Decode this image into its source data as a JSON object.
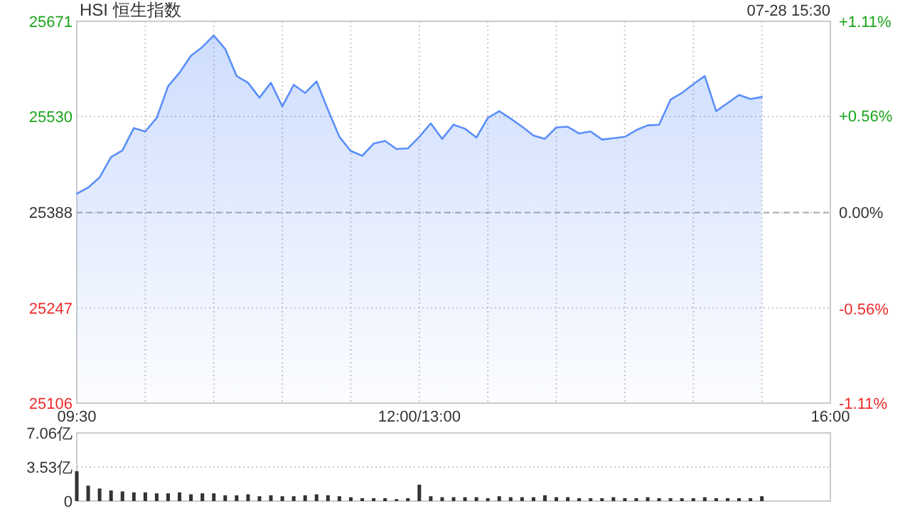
{
  "chart_data": [
    {
      "type": "area",
      "title": "HSI 恒生指数",
      "annotations": [
        "07-28 15:30"
      ],
      "categories": [
        "09:30",
        null,
        null,
        null,
        null,
        null,
        null,
        null,
        null,
        null,
        null,
        null,
        null,
        null,
        null,
        null,
        null,
        null,
        null,
        null,
        null,
        null,
        null,
        null,
        null,
        null,
        null,
        null,
        null,
        null,
        "12:00/13:00",
        null,
        null,
        null,
        null,
        null,
        null,
        null,
        null,
        null,
        null,
        null,
        null,
        null,
        null,
        null,
        null,
        null,
        null,
        null,
        null,
        null,
        null,
        null,
        null,
        null,
        null,
        null,
        null,
        null,
        null,
        null,
        null,
        null,
        null,
        null,
        "16:00"
      ],
      "series": [
        {
          "color": "#5b8ff9",
          "values": [
            25416,
            25425,
            25440,
            25470,
            25480,
            25513,
            25508,
            25528,
            25575,
            25595,
            25620,
            25633,
            25650,
            25630,
            25590,
            25580,
            25558,
            25580,
            25545,
            25577,
            25565,
            25582,
            25540,
            25500,
            25479,
            25472,
            25490,
            25494,
            25482,
            25483,
            25500,
            25520,
            25497,
            25518,
            25512,
            25499,
            25528,
            25538,
            25527,
            25515,
            25502,
            25497,
            25514,
            25515,
            25505,
            25508,
            25496,
            25498,
            25500,
            25510,
            25517,
            25518,
            25555,
            25565,
            25578,
            25590,
            25538,
            25550,
            25562,
            25556,
            25559,
            null,
            null,
            null,
            null,
            null,
            null
          ]
        }
      ],
      "ylim": [
        25106,
        25671
      ],
      "yticks": [
        25106,
        25247,
        25388,
        25530,
        25671
      ],
      "y2lim": [
        -1.11,
        1.11
      ],
      "y2ticks": [
        {
          "value": -1.11,
          "label": "-1.11%"
        },
        {
          "value": -0.56,
          "label": "-0.56%"
        },
        {
          "value": 0,
          "label": "0.00%"
        },
        {
          "value": 0.56,
          "label": "+0.56%"
        },
        {
          "value": 1.11,
          "label": "+1.11%"
        }
      ],
      "ref_lines": [
        {
          "axis": "y",
          "value": 25388,
          "line_style": "dashed",
          "color": "#aaaaaa"
        }
      ],
      "grid": true
    },
    {
      "type": "bar",
      "categories": [
        null,
        null,
        null,
        null,
        null,
        null,
        null,
        null,
        null,
        null,
        null,
        null,
        null,
        null,
        null,
        null,
        null,
        null,
        null,
        null,
        null,
        null,
        null,
        null,
        null,
        null,
        null,
        null,
        null,
        null,
        null,
        null,
        null,
        null,
        null,
        null,
        null,
        null,
        null,
        null,
        null,
        null,
        null,
        null,
        null,
        null,
        null,
        null,
        null,
        null,
        null,
        null,
        null,
        null,
        null,
        null,
        null,
        null,
        null,
        null,
        null,
        null,
        null,
        null,
        null,
        null,
        null
      ],
      "series": [
        {
          "color": "#333333",
          "values": [
            3.1,
            1.6,
            1.3,
            1.1,
            1.0,
            0.9,
            0.9,
            0.8,
            0.8,
            0.9,
            0.7,
            0.8,
            0.8,
            0.6,
            0.6,
            0.7,
            0.5,
            0.6,
            0.5,
            0.5,
            0.6,
            0.7,
            0.6,
            0.5,
            0.4,
            0.3,
            0.3,
            0.3,
            0.2,
            0.3,
            1.7,
            0.5,
            0.4,
            0.4,
            0.4,
            0.4,
            0.3,
            0.5,
            0.4,
            0.4,
            0.4,
            0.6,
            0.4,
            0.4,
            0.3,
            0.3,
            0.3,
            0.4,
            0.3,
            0.3,
            0.4,
            0.3,
            0.3,
            0.3,
            0.3,
            0.4,
            0.3,
            0.3,
            0.3,
            0.3,
            0.5,
            null,
            null,
            null,
            null,
            null,
            null
          ]
        }
      ],
      "ylim": [
        0,
        7.06
      ],
      "yticks": [
        0,
        {
          "value": 3.53,
          "label": "3.53亿"
        },
        {
          "value": 7.06,
          "label": "7.06亿"
        }
      ],
      "tick_labels": "y",
      "grid": "y"
    }
  ]
}
